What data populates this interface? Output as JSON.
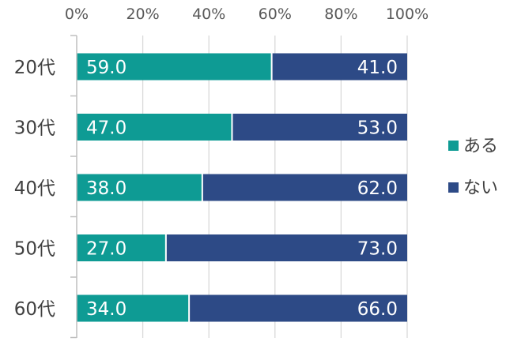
{
  "chart_data": {
    "type": "bar",
    "orientation": "horizontal",
    "stacked": true,
    "percent": true,
    "categories": [
      "20代",
      "30代",
      "40代",
      "50代",
      "60代"
    ],
    "series": [
      {
        "name": "ある",
        "values": [
          59.0,
          47.0,
          38.0,
          27.0,
          34.0
        ],
        "color": "#0e9b94"
      },
      {
        "name": "ない",
        "values": [
          41.0,
          53.0,
          62.0,
          73.0,
          66.0
        ],
        "color": "#2d4a86"
      }
    ],
    "value_labels": {
      "ある": [
        "59.0",
        "47.0",
        "38.0",
        "27.0",
        "34.0"
      ],
      "ない": [
        "41.0",
        "53.0",
        "62.0",
        "73.0",
        "66.0"
      ]
    },
    "xaxis": {
      "position": "top",
      "ticks": [
        "0%",
        "20%",
        "40%",
        "60%",
        "80%",
        "100%"
      ],
      "tick_values": [
        0,
        20,
        40,
        60,
        80,
        100
      ],
      "range": [
        0,
        100
      ]
    },
    "grid": "vertical",
    "legend": "right",
    "gridline_color": "#d9d9d9",
    "axis_color": "#bfbfbf"
  }
}
